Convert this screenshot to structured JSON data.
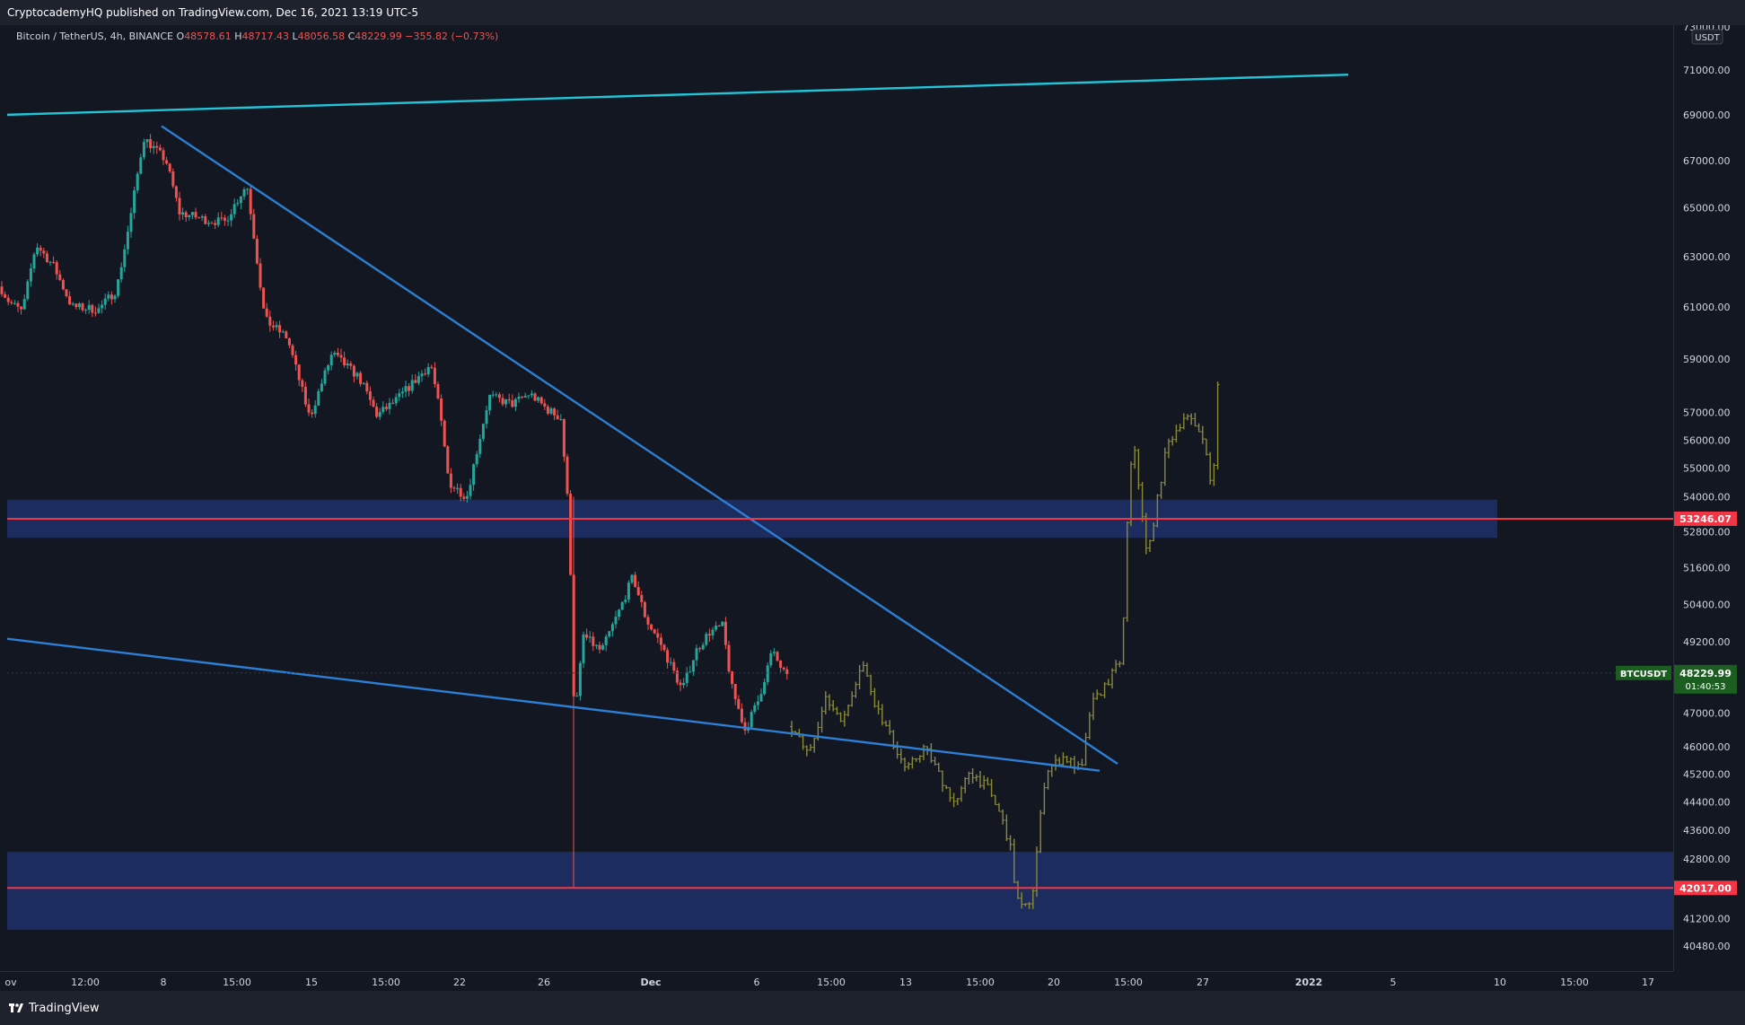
{
  "header": {
    "publisher_line": "CryptocademyHQ published on TradingView.com, Dec 16, 2021 13:19 UTC-5"
  },
  "legend": {
    "symbol": "Bitcoin / TetherUS, 4h, BINANCE",
    "open_label": "O",
    "open": "48578.61",
    "high_label": "H",
    "high": "48717.43",
    "low_label": "L",
    "low": "48056.58",
    "close_label": "C",
    "close": "48229.99",
    "change": "−355.82 (−0.73%)"
  },
  "price_axis": {
    "currency": "USDT",
    "ticks": [
      "71000.00",
      "69000.00",
      "67000.00",
      "65000.00",
      "63000.00",
      "61000.00",
      "59000.00",
      "57000.00",
      "56000.00",
      "55000.00",
      "54000.00",
      "52800.00",
      "51600.00",
      "50400.00",
      "49200.00",
      "47000.00",
      "46000.00",
      "45200.00",
      "44400.00",
      "43600.00",
      "42800.00",
      "41200.00",
      "40480.00"
    ],
    "top_tick_partial": "73000.00"
  },
  "markers": {
    "level_upper": {
      "label": "53246.07",
      "value": 53246.07,
      "color": "#f23645"
    },
    "level_lower": {
      "label": "42017.00",
      "value": 42017.0,
      "color": "#f23645"
    },
    "last_price": {
      "symbol": "BTCUSDT",
      "label": "48229.99",
      "countdown": "01:40:53",
      "value": 48229.99,
      "color": "#1b5e20"
    }
  },
  "time_axis": {
    "labels": [
      "ov",
      "12:00",
      "8",
      "15:00",
      "15",
      "15:00",
      "22",
      "26",
      "Dec",
      "6",
      "15:00",
      "13",
      "15:00",
      "20",
      "15:00",
      "27",
      "2022",
      "5",
      "10",
      "15:00",
      "17"
    ]
  },
  "footer": {
    "brand": "TradingView"
  },
  "chart_data": {
    "type": "candlestick",
    "symbol": "Bitcoin / TetherUS",
    "interval": "4h",
    "exchange": "BINANCE",
    "y_scale": "log",
    "ylim": [
      40000,
      73000
    ],
    "path_actual": [
      [
        0,
        61800
      ],
      [
        10,
        61200
      ],
      [
        25,
        60800
      ],
      [
        40,
        63500
      ],
      [
        60,
        62600
      ],
      [
        80,
        61000
      ],
      [
        110,
        60900
      ],
      [
        130,
        61700
      ],
      [
        145,
        64500
      ],
      [
        160,
        68000
      ],
      [
        185,
        67000
      ],
      [
        200,
        64800
      ],
      [
        230,
        64500
      ],
      [
        250,
        64400
      ],
      [
        275,
        66000
      ],
      [
        295,
        60500
      ],
      [
        320,
        59800
      ],
      [
        345,
        56800
      ],
      [
        370,
        59200
      ],
      [
        400,
        58300
      ],
      [
        420,
        56900
      ],
      [
        440,
        57400
      ],
      [
        460,
        58100
      ],
      [
        480,
        58800
      ],
      [
        490,
        57000
      ],
      [
        500,
        54500
      ],
      [
        520,
        54000
      ],
      [
        545,
        57600
      ],
      [
        570,
        57300
      ],
      [
        590,
        57700
      ],
      [
        610,
        57100
      ],
      [
        625,
        56800
      ],
      [
        632,
        54000
      ],
      [
        636,
        51200
      ],
      [
        640,
        46700
      ],
      [
        650,
        49400
      ],
      [
        670,
        48900
      ],
      [
        690,
        50200
      ],
      [
        705,
        51300
      ],
      [
        720,
        49900
      ],
      [
        735,
        49200
      ],
      [
        760,
        47700
      ],
      [
        775,
        48900
      ],
      [
        790,
        49500
      ],
      [
        805,
        49700
      ],
      [
        815,
        47800
      ],
      [
        830,
        46500
      ],
      [
        845,
        47400
      ],
      [
        860,
        48900
      ],
      [
        878,
        48000
      ]
    ],
    "path_projection": [
      [
        880,
        46600
      ],
      [
        900,
        45800
      ],
      [
        920,
        47400
      ],
      [
        940,
        46800
      ],
      [
        960,
        48600
      ],
      [
        975,
        47300
      ],
      [
        995,
        46100
      ],
      [
        1010,
        45300
      ],
      [
        1030,
        46000
      ],
      [
        1050,
        45000
      ],
      [
        1065,
        44300
      ],
      [
        1080,
        45300
      ],
      [
        1100,
        44800
      ],
      [
        1115,
        44000
      ],
      [
        1125,
        43200
      ],
      [
        1132,
        41800
      ],
      [
        1140,
        41400
      ],
      [
        1150,
        41800
      ],
      [
        1158,
        43700
      ],
      [
        1165,
        45300
      ],
      [
        1185,
        45700
      ],
      [
        1205,
        45300
      ],
      [
        1215,
        47200
      ],
      [
        1235,
        48000
      ],
      [
        1250,
        48700
      ],
      [
        1258,
        54700
      ],
      [
        1265,
        55800
      ],
      [
        1270,
        53900
      ],
      [
        1278,
        51900
      ],
      [
        1290,
        54000
      ],
      [
        1300,
        55800
      ],
      [
        1320,
        56900
      ],
      [
        1340,
        56200
      ],
      [
        1350,
        54200
      ],
      [
        1355,
        56200
      ],
      [
        1358,
        59500
      ]
    ],
    "annotations": {
      "upper_channel_line": {
        "from": [
          8,
          69000
        ],
        "to": [
          1502,
          70800
        ],
        "color": "#22c5d8"
      },
      "descending_resistance": {
        "from": [
          180,
          68500
        ],
        "to": [
          1245,
          45500
        ],
        "color": "#2d7fd5"
      },
      "descending_support": {
        "from": [
          8,
          49300
        ],
        "to": [
          1225,
          45300
        ],
        "color": "#2d7fd5"
      },
      "horizontal_level_1": {
        "value": 53246.07,
        "zone": [
          52600,
          53900
        ],
        "color": "#f23645"
      },
      "horizontal_level_2": {
        "value": 42017.0,
        "zone": [
          40900,
          43000
        ],
        "color": "#f23645"
      }
    }
  }
}
